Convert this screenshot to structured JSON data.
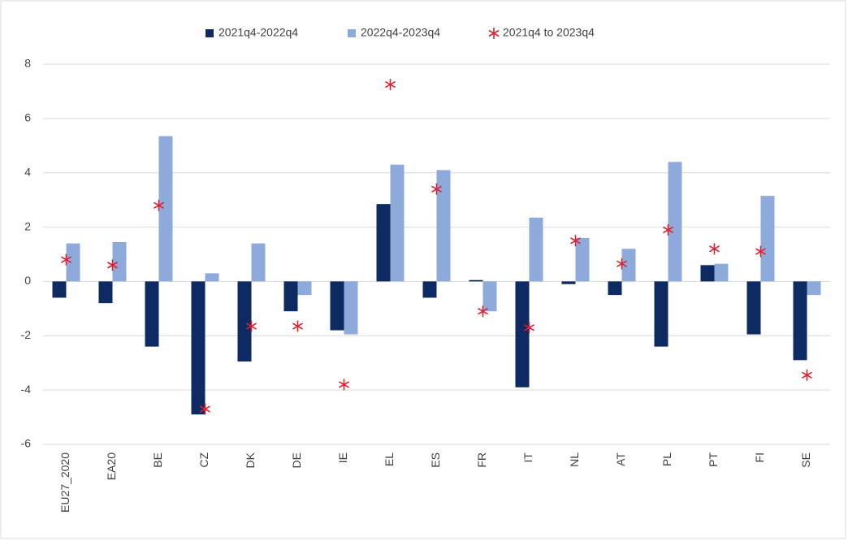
{
  "chart_data": {
    "type": "bar",
    "categories": [
      "EU27_2020",
      "EA20",
      "BE",
      "CZ",
      "DK",
      "DE",
      "IE",
      "EL",
      "ES",
      "FR",
      "IT",
      "NL",
      "AT",
      "PL",
      "PT",
      "FI",
      "SE"
    ],
    "series": [
      {
        "name": "2021q4-2022q4",
        "type": "bar",
        "color": "#0e2a63",
        "values": [
          -0.6,
          -0.8,
          -2.4,
          -4.9,
          -2.95,
          -1.1,
          -1.8,
          2.85,
          -0.6,
          0.05,
          -3.9,
          -0.1,
          -0.5,
          -2.4,
          0.6,
          -1.95,
          -2.9
        ]
      },
      {
        "name": "2022q4-2023q4",
        "type": "bar",
        "color": "#8eaadb",
        "values": [
          1.4,
          1.45,
          5.35,
          0.3,
          1.4,
          -0.5,
          -1.95,
          4.3,
          4.1,
          -1.1,
          2.35,
          1.6,
          1.2,
          4.4,
          0.65,
          3.15,
          -0.5
        ]
      },
      {
        "name": "2021q4 to 2023q4",
        "type": "scatter",
        "color": "#e0202f",
        "values": [
          0.8,
          0.6,
          2.8,
          -4.7,
          -1.65,
          -1.65,
          -3.8,
          7.25,
          3.4,
          -1.1,
          -1.7,
          1.5,
          0.65,
          1.9,
          1.2,
          1.1,
          -3.45
        ]
      }
    ],
    "ylim": [
      -6,
      8
    ],
    "yticks": [
      -6,
      -4,
      -2,
      0,
      2,
      4,
      6,
      8
    ],
    "grid": true,
    "legend": "top"
  }
}
